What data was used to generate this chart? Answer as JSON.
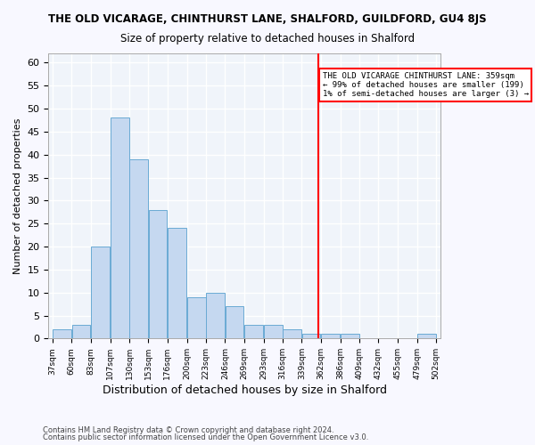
{
  "title": "THE OLD VICARAGE, CHINTHURST LANE, SHALFORD, GUILDFORD, GU4 8JS",
  "subtitle": "Size of property relative to detached houses in Shalford",
  "xlabel": "Distribution of detached houses by size in Shalford",
  "ylabel": "Number of detached properties",
  "footnote1": "Contains HM Land Registry data © Crown copyright and database right 2024.",
  "footnote2": "Contains public sector information licensed under the Open Government Licence v3.0.",
  "bar_color": "#c5d8f0",
  "bar_edgecolor": "#6aaad4",
  "background_color": "#f0f4fa",
  "grid_color": "#ffffff",
  "annotation_text": "THE OLD VICARAGE CHINTHURST LANE: 359sqm\n← 99% of detached houses are smaller (199)\n1% of semi-detached houses are larger (3) →",
  "annotation_box_edgecolor": "red",
  "vline_x": 359,
  "vline_color": "red",
  "bin_edges": [
    37,
    60,
    83,
    107,
    130,
    153,
    176,
    200,
    223,
    246,
    269,
    293,
    316,
    339,
    362,
    386,
    409,
    432,
    455,
    479,
    502
  ],
  "bin_labels": [
    "37sqm",
    "60sqm",
    "83sqm",
    "107sqm",
    "130sqm",
    "153sqm",
    "176sqm",
    "200sqm",
    "223sqm",
    "246sqm",
    "269sqm",
    "293sqm",
    "316sqm",
    "339sqm",
    "362sqm",
    "386sqm",
    "409sqm",
    "432sqm",
    "455sqm",
    "479sqm",
    "502sqm"
  ],
  "bar_heights": [
    2,
    3,
    20,
    48,
    39,
    28,
    24,
    9,
    10,
    7,
    3,
    3,
    2,
    1,
    1,
    1,
    0,
    0,
    0,
    1
  ],
  "ylim": [
    0,
    62
  ],
  "yticks": [
    0,
    5,
    10,
    15,
    20,
    25,
    30,
    35,
    40,
    45,
    50,
    55,
    60
  ]
}
